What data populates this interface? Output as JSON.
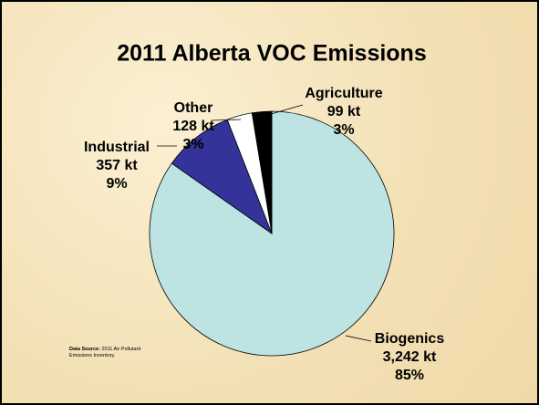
{
  "chart_data": {
    "type": "pie",
    "title": "2011 Alberta VOC Emissions",
    "categories": [
      "Biogenics",
      "Industrial",
      "Other",
      "Agriculture"
    ],
    "values": [
      3242,
      357,
      128,
      99
    ],
    "value_labels": [
      "3,242 kt",
      "357 kt",
      "128 kt",
      "99 kt"
    ],
    "percent_labels": [
      "85%",
      "9%",
      "3%",
      "3%"
    ],
    "colors": [
      "#bde3e3",
      "#333399",
      "#ffffff",
      "#000000"
    ],
    "source_label": "Data Source:",
    "source_text": "2011 Air Pollutant Emissions Inventory."
  }
}
